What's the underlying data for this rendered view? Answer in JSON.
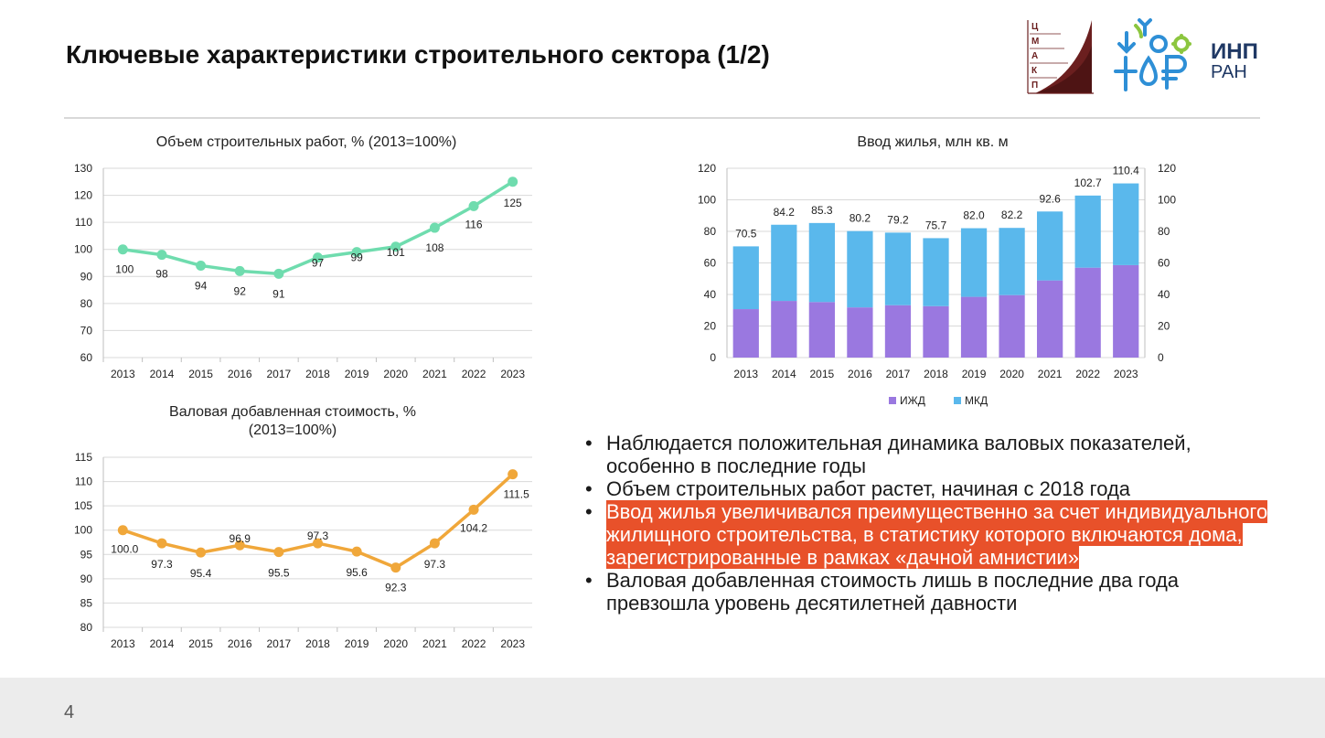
{
  "slide": {
    "title": "Ключевые характеристики строительного сектора (1/2)",
    "page_number": "4",
    "logos": {
      "left_letters": [
        "Ц",
        "М",
        "А",
        "К",
        "П"
      ],
      "inp": "ИНП",
      "ran": "РАН"
    }
  },
  "bullets": [
    {
      "text": "Наблюдается положительная динамика валовых показателей, особенно в последние годы",
      "highlight": false
    },
    {
      "text": "Объем строительных работ растет, начиная с 2018 года",
      "highlight": false
    },
    {
      "text": "Ввод жилья увеличивался преимущественно за счет индивидуального жилищного строительства, в статистику которого включаются дома, зарегистрированные в рамках «дачной амнистии»",
      "highlight": true
    },
    {
      "text": "Валовая добавленная стоимость лишь в последние два года превзошла уровень десятилетней давности",
      "highlight": false
    }
  ],
  "colors": {
    "line1": "#6fdcae",
    "line2": "#f0a73a",
    "izhd": "#9a78e0",
    "mkd": "#5ab8ec",
    "highlight": "#e8512a",
    "grid": "#d9d9d9"
  },
  "chart_data": [
    {
      "type": "line",
      "title": "Объем строительных работ, % (2013=100%)",
      "x": [
        "2013",
        "2014",
        "2015",
        "2016",
        "2017",
        "2018",
        "2019",
        "2020",
        "2021",
        "2022",
        "2023"
      ],
      "series": [
        {
          "values": [
            100,
            98,
            94,
            92,
            91,
            97,
            99,
            101,
            108,
            116,
            125
          ]
        }
      ],
      "data_labels": [
        "100",
        "98",
        "94",
        "92",
        "91",
        "97",
        "99",
        "101",
        "108",
        "116",
        "125"
      ],
      "ylim": [
        60,
        130
      ],
      "yticks": [
        60,
        70,
        80,
        90,
        100,
        110,
        120,
        130
      ],
      "grid": true
    },
    {
      "type": "line",
      "title": "Валовая добавленная стоимость, % (2013=100%)",
      "x": [
        "2013",
        "2014",
        "2015",
        "2016",
        "2017",
        "2018",
        "2019",
        "2020",
        "2021",
        "2022",
        "2023"
      ],
      "series": [
        {
          "values": [
            100.0,
            97.3,
            95.4,
            96.9,
            95.5,
            97.3,
            95.6,
            92.3,
            97.3,
            104.2,
            111.5
          ]
        }
      ],
      "data_labels": [
        "100.0",
        "97.3",
        "95.4",
        "96.9",
        "95.5",
        "97.3",
        "95.6",
        "92.3",
        "97.3",
        "104.2",
        "111.5"
      ],
      "ylim": [
        80,
        115
      ],
      "yticks": [
        80,
        85,
        90,
        95,
        100,
        105,
        110,
        115
      ],
      "grid": true
    },
    {
      "type": "bar",
      "stacked": true,
      "title": "Ввод жилья, млн кв. м",
      "categories": [
        "2013",
        "2014",
        "2015",
        "2016",
        "2017",
        "2018",
        "2019",
        "2020",
        "2021",
        "2022",
        "2023"
      ],
      "series": [
        {
          "name": "ИЖД",
          "values": [
            30.7,
            35.9,
            35.2,
            31.8,
            33.2,
            32.6,
            38.5,
            39.6,
            48.9,
            57.0,
            58.6
          ]
        },
        {
          "name": "МКД",
          "values": [
            39.8,
            48.3,
            50.1,
            48.4,
            46.0,
            43.1,
            43.5,
            42.6,
            43.7,
            45.7,
            51.8
          ]
        }
      ],
      "totals": [
        "70.5",
        "84.2",
        "85.3",
        "80.2",
        "79.2",
        "75.7",
        "82.0",
        "82.2",
        "92.6",
        "102.7",
        "110.4"
      ],
      "ylim": [
        0,
        120
      ],
      "yticks": [
        0,
        20,
        40,
        60,
        80,
        100,
        120
      ],
      "secondary_y_axis": true,
      "legend": "bottom",
      "grid": true
    }
  ]
}
